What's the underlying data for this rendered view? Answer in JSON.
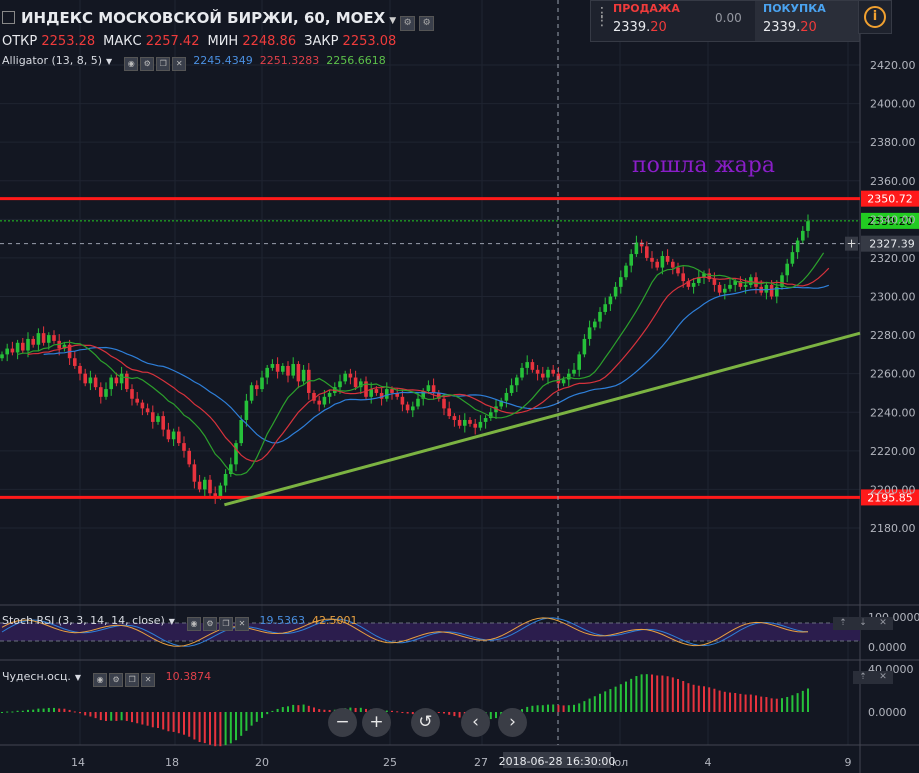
{
  "title": "ИНДЕКС МОСКОВСКОЙ БИРЖИ, 60, MOEX",
  "ohlc": {
    "o_label": "ОТКР",
    "o": "2253.28",
    "h_label": "МАКС",
    "h": "2257.42",
    "l_label": "МИН",
    "l": "2248.86",
    "c_label": "ЗАКР",
    "c": "2253.08"
  },
  "alligator": {
    "label": "Alligator (13, 8, 5)",
    "jaw": "2245.4349",
    "teeth": "2251.3283",
    "lips": "2256.6618"
  },
  "stoch": {
    "label": "Stoch RSI (3, 3, 14, 14, close)",
    "k": "19.5363",
    "d": "42.5001"
  },
  "ao": {
    "label": "Чудесн.осц.",
    "value": "10.3874"
  },
  "trade": {
    "sell_label": "ПРОДАЖА",
    "sell_main": "2339.",
    "sell_dec": "20",
    "spread": "0.00",
    "buy_label": "ПОКУПКА",
    "buy_main": "2339.",
    "buy_dec": "20"
  },
  "annotation": "пошла жара",
  "crosshair_time": "2018-06-28 16:30:00",
  "x_ticks": [
    "14",
    "18",
    "20",
    "25",
    "27",
    "юл",
    "4",
    "9"
  ],
  "colors": {
    "bg": "#131722",
    "up": "#26c13a",
    "down": "#e8333e",
    "level": "#ff1a1a",
    "trend": "#7cb342",
    "jaw": "#2e7fd9",
    "teeth": "#d6323c",
    "lips": "#2ca02c",
    "last": "#22cc22",
    "annot": "#8a1ec8"
  },
  "chart_data": [
    {
      "type": "candlestick",
      "title": "ИНДЕКС МОСКОВСКОЙ БИРЖИ, 60, MOEX",
      "ylim": [
        2165,
        2440
      ],
      "y_ticks": [
        "2180.00",
        "2200.00",
        "2220.00",
        "2240.00",
        "2260.00",
        "2280.00",
        "2300.00",
        "2320.00",
        "2340.00",
        "2360.00",
        "2380.00",
        "2400.00",
        "2420.00"
      ],
      "closes": [
        2270,
        2273,
        2271,
        2276,
        2272,
        2278,
        2275,
        2281,
        2276,
        2280,
        2277,
        2273,
        2275,
        2268,
        2264,
        2260,
        2255,
        2258,
        2253,
        2248,
        2252,
        2258,
        2255,
        2260,
        2252,
        2247,
        2245,
        2242,
        2240,
        2235,
        2238,
        2231,
        2226,
        2230,
        2224,
        2220,
        2213,
        2204,
        2200,
        2205,
        2198,
        2196,
        2202,
        2208,
        2213,
        2224,
        2236,
        2246,
        2254,
        2252,
        2258,
        2263,
        2265,
        2261,
        2264,
        2259,
        2265,
        2256,
        2262,
        2250,
        2246,
        2244,
        2248,
        2250,
        2253,
        2256,
        2260,
        2258,
        2253,
        2256,
        2248,
        2252,
        2250,
        2247,
        2252,
        2250,
        2248,
        2244,
        2241,
        2243,
        2247,
        2251,
        2254,
        2250,
        2247,
        2242,
        2238,
        2236,
        2233,
        2236,
        2234,
        2232,
        2235,
        2237,
        2240,
        2243,
        2246,
        2250,
        2254,
        2258,
        2263,
        2266,
        2262,
        2260,
        2258,
        2262,
        2260,
        2255,
        2257,
        2260,
        2262,
        2270,
        2278,
        2284,
        2287,
        2292,
        2296,
        2300,
        2305,
        2310,
        2316,
        2322,
        2328,
        2326,
        2320,
        2318,
        2315,
        2321,
        2318,
        2315,
        2312,
        2308,
        2305,
        2307,
        2310,
        2312,
        2309,
        2306,
        2302,
        2304,
        2306,
        2308,
        2305,
        2306,
        2310,
        2305,
        2302,
        2306,
        2300,
        2305,
        2311,
        2317,
        2323,
        2329,
        2334,
        2339
      ],
      "levels": [
        {
          "label": "2350.72",
          "value": 2350.72
        },
        {
          "label": "2195.85",
          "value": 2195.85
        }
      ],
      "last_price": {
        "label": "2339.20",
        "value": 2339.2
      },
      "crosshair": {
        "label": "2327.39",
        "value": 2327.39
      },
      "trendline": [
        {
          "bar": 37,
          "value": 2192
        },
        {
          "bar": 180,
          "value": 2281
        }
      ],
      "series": [
        {
          "name": "Jaw"
        },
        {
          "name": "Teeth"
        },
        {
          "name": "Lips"
        }
      ]
    },
    {
      "type": "line",
      "title": "Stoch RSI (3, 3, 14, 14, close)",
      "ylim": [
        0,
        100
      ],
      "y_ticks": [
        "100.0000",
        "0.0000"
      ],
      "k_last": 19.5363,
      "d_last": 42.5001
    },
    {
      "type": "bar",
      "title": "Чудесн.осц.",
      "ylim": [
        -25,
        40
      ],
      "y_ticks": [
        "40.0000",
        "0.0000"
      ],
      "last_value": 10.3874
    }
  ]
}
